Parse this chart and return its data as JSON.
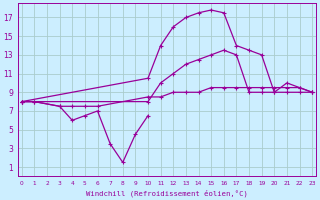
{
  "bg_color": "#cceeff",
  "grid_color": "#aacccc",
  "line_color": "#990099",
  "xlabel": "Windchill (Refroidissement éolien,°C)",
  "ylabel_ticks": [
    1,
    3,
    5,
    7,
    9,
    11,
    13,
    15,
    17
  ],
  "xlabel_ticks": [
    0,
    1,
    2,
    3,
    4,
    5,
    6,
    7,
    8,
    9,
    10,
    11,
    12,
    13,
    14,
    15,
    16,
    17,
    18,
    19,
    20,
    21,
    22,
    23
  ],
  "xlim": [
    -0.3,
    23.3
  ],
  "ylim": [
    0,
    18.5
  ],
  "line1_x": [
    0,
    1,
    3,
    4,
    5,
    6,
    10,
    11,
    12,
    13,
    14,
    15,
    16,
    17,
    18,
    19,
    20,
    21,
    22,
    23
  ],
  "line1_y": [
    8,
    8,
    7.5,
    7.5,
    7.5,
    7.5,
    8.5,
    8.5,
    9,
    9,
    9,
    9.5,
    9.5,
    9.5,
    9.5,
    9.5,
    9.5,
    9.5,
    9.5,
    9
  ],
  "line2_x": [
    0,
    1,
    3,
    4,
    5,
    6,
    7,
    8,
    9,
    10
  ],
  "line2_y": [
    8,
    8,
    7.5,
    6,
    6.5,
    7,
    3.5,
    1.5,
    4.5,
    6.5
  ],
  "line3_x": [
    0,
    10,
    11,
    12,
    13,
    14,
    15,
    16,
    17,
    18,
    19,
    20,
    21,
    22,
    23
  ],
  "line3_y": [
    8,
    10.5,
    14,
    16,
    17,
    17.5,
    17.8,
    17.5,
    14,
    13.5,
    13,
    9,
    10,
    9.5,
    9
  ],
  "line4_x": [
    0,
    10,
    11,
    12,
    13,
    14,
    15,
    16,
    17,
    18,
    19,
    20,
    21,
    22,
    23
  ],
  "line4_y": [
    8,
    8,
    10,
    11,
    12,
    12.5,
    13,
    13.5,
    13,
    9,
    9,
    9,
    9,
    9,
    9
  ]
}
